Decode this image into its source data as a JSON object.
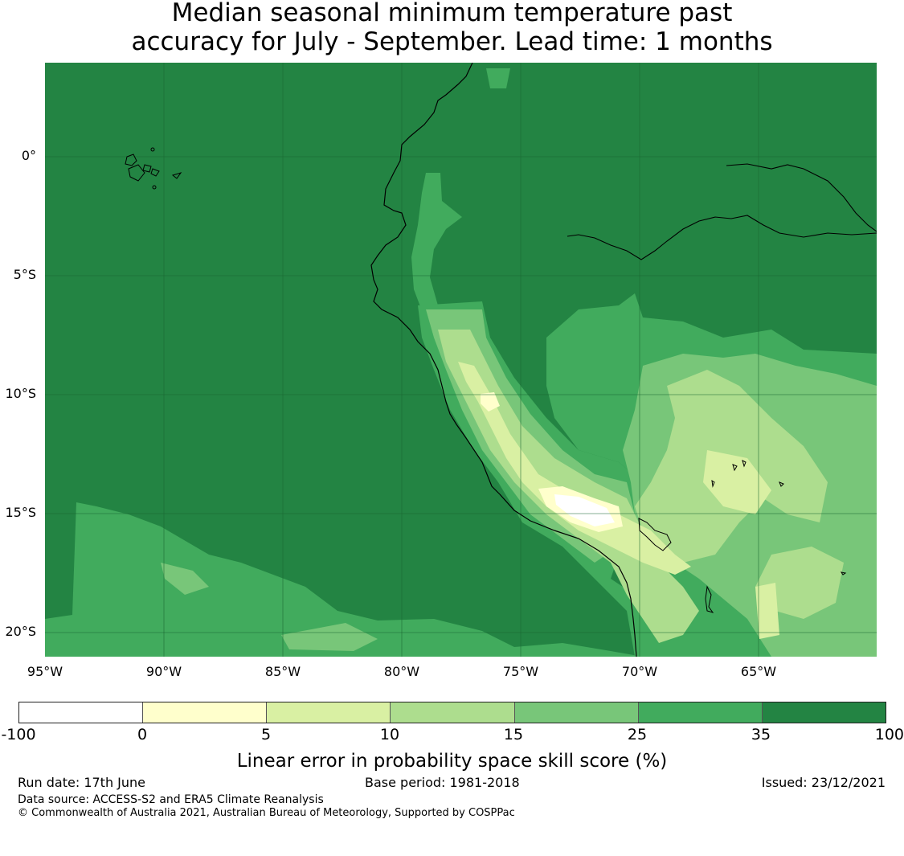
{
  "title_line1": "Median seasonal minimum temperature past",
  "title_line2": "accuracy for July - September. Lead time: 1 months",
  "map": {
    "lat_labels": [
      "0°",
      "5°S",
      "10°S",
      "15°S",
      "20°S"
    ],
    "lon_labels": [
      "95°W",
      "90°W",
      "85°W",
      "80°W",
      "75°W",
      "70°W",
      "65°W"
    ],
    "region": "Peru / Bolivia Pacific coast",
    "colors": {
      "ocean_high": "#238443",
      "mid": "#41ab5d",
      "light_mid": "#78c679",
      "light": "#addd8e",
      "pale": "#d9f0a3",
      "near_white": "#ffffcc",
      "white": "#ffffff"
    }
  },
  "colorbar": {
    "ticks": [
      "-100",
      "0",
      "5",
      "10",
      "15",
      "25",
      "35",
      "100"
    ],
    "colors": [
      "#ffffff",
      "#ffffcc",
      "#d9f0a3",
      "#addd8e",
      "#78c679",
      "#41ab5d",
      "#238443"
    ],
    "label": "Linear error in probability space skill score (%)"
  },
  "footer": {
    "run_date": "Run date: 17th June",
    "base_period": "Base period: 1981-2018",
    "issued": "Issued: 23/12/2021",
    "data_source": "Data source: ACCESS-S2 and ERA5 Climate Reanalysis",
    "copyright": "© Commonwealth of Australia 2021, Australian Bureau of Meteorology, Supported by COSPPac"
  }
}
